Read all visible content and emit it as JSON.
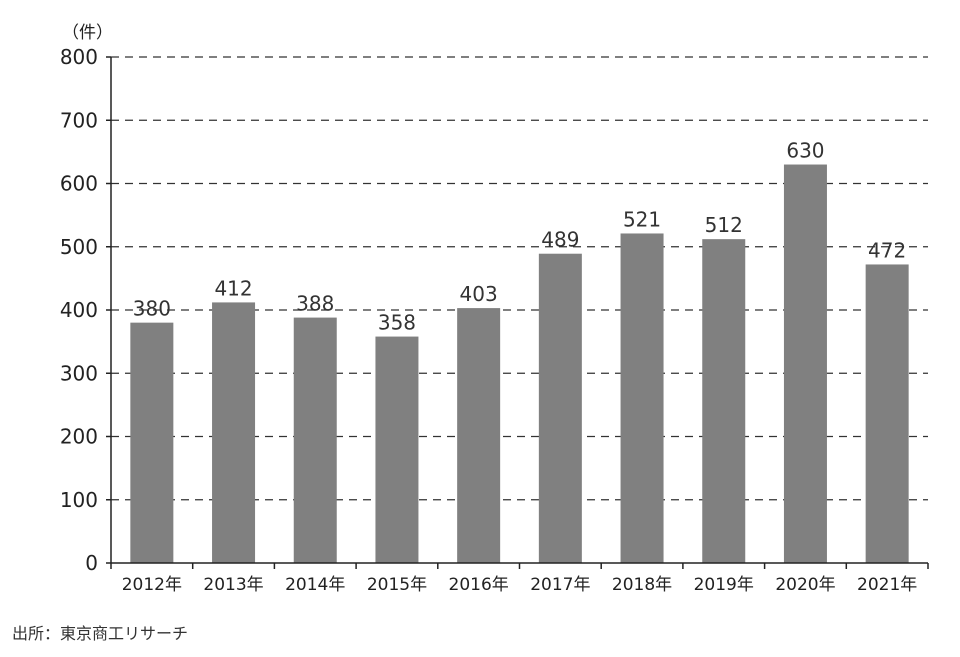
{
  "chart_data": {
    "type": "bar",
    "unit_label": "（件）",
    "categories": [
      "2012年",
      "2013年",
      "2014年",
      "2015年",
      "2016年",
      "2017年",
      "2018年",
      "2019年",
      "2020年",
      "2021年"
    ],
    "values": [
      380,
      412,
      388,
      358,
      403,
      489,
      521,
      512,
      630,
      472
    ],
    "data_labels": [
      "380",
      "412",
      "388",
      "358",
      "403",
      "489",
      "521",
      "512",
      "630",
      "472"
    ],
    "ylim": [
      0,
      800
    ],
    "yticks": [
      "0",
      "100",
      "200",
      "300",
      "400",
      "500",
      "600",
      "700",
      "800"
    ],
    "grid": "dashed-horizontal",
    "bar_color": "#808080"
  },
  "footer": {
    "source": "出所：東京商工リサーチ"
  }
}
